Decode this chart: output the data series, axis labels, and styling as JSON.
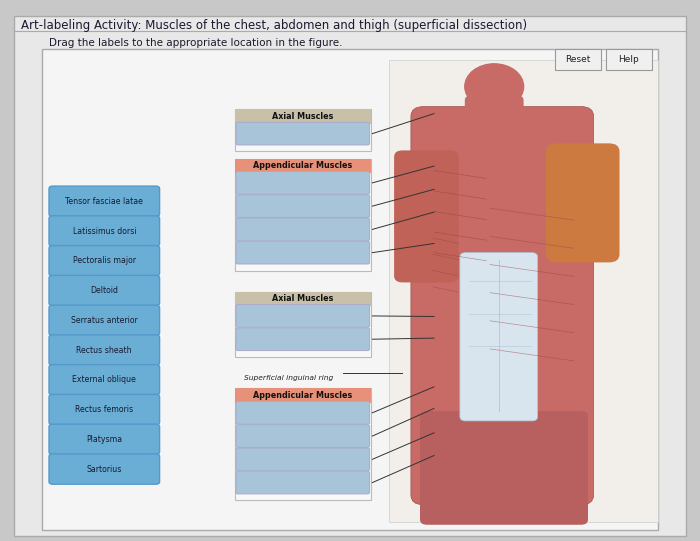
{
  "title": "Art-labeling Activity: Muscles of the chest, abdomen and thigh (superficial dissection)",
  "subtitle": "Drag the labels to the appropriate location in the figure.",
  "bg_outer": "#c8c8c8",
  "bg_panel": "#e8e8e8",
  "bg_inner": "#f5f5f5",
  "label_bg": "#6aaed6",
  "label_border": "#5599cc",
  "label_text_color": "#1a1a2e",
  "section_header_axial_bg": "#c8c0a8",
  "section_header_appendicular_bg": "#e8917a",
  "blank_box_bg": "#a8c4d8",
  "line_color": "#333333",
  "labels": [
    "Tensor fasciae latae",
    "Latissimus dorsi",
    "Pectoralis major",
    "Deltoid",
    "Serratus anterior",
    "Rectus sheath",
    "External oblique",
    "Rectus femoris",
    "Platysma",
    "Sartorius"
  ],
  "superficial_text": "Superficial inguinal ring"
}
